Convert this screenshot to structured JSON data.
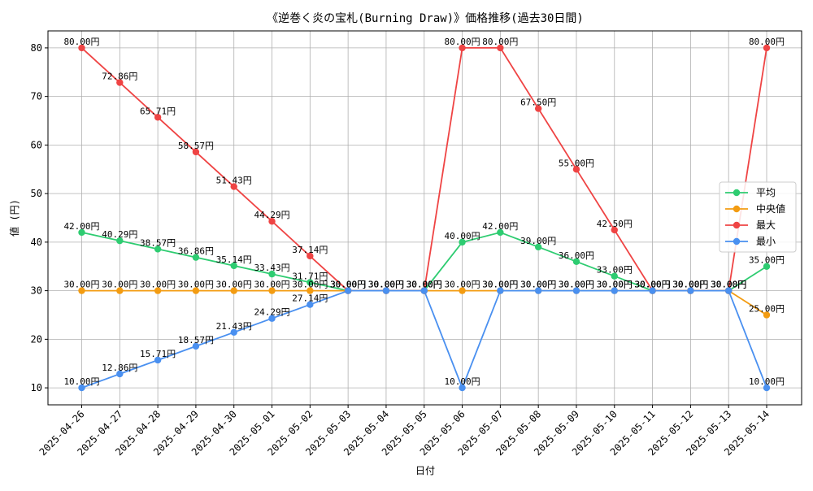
{
  "chart_data": {
    "type": "line",
    "title": "《逆巻く炎の宝札(Burning Draw)》価格推移(過去30日間)",
    "xlabel": "日付",
    "ylabel": "値 (円)",
    "ylim": [
      6.5,
      83.5
    ],
    "yticks": [
      10,
      20,
      30,
      40,
      50,
      60,
      70,
      80
    ],
    "grid": true,
    "legend_position": "center-right",
    "categories": [
      "2025-04-26",
      "2025-04-27",
      "2025-04-28",
      "2025-04-29",
      "2025-04-30",
      "2025-05-01",
      "2025-05-02",
      "2025-05-03",
      "2025-05-04",
      "2025-05-05",
      "2025-05-06",
      "2025-05-07",
      "2025-05-08",
      "2025-05-09",
      "2025-05-10",
      "2025-05-11",
      "2025-05-12",
      "2025-05-13",
      "2025-05-14"
    ],
    "series": [
      {
        "name": "平均",
        "color": "#2ecc71",
        "values": [
          42.0,
          40.29,
          38.57,
          36.86,
          35.14,
          33.43,
          31.71,
          30.0,
          30.0,
          30.0,
          40.0,
          42.0,
          39.0,
          36.0,
          33.0,
          30.0,
          30.0,
          30.0,
          35.0
        ]
      },
      {
        "name": "中央値",
        "color": "#f39c12",
        "values": [
          30.0,
          30.0,
          30.0,
          30.0,
          30.0,
          30.0,
          30.0,
          30.0,
          30.0,
          30.0,
          30.0,
          30.0,
          30.0,
          30.0,
          30.0,
          30.0,
          30.0,
          30.0,
          25.0
        ]
      },
      {
        "name": "最大",
        "color": "#ef4444",
        "values": [
          80.0,
          72.86,
          65.71,
          58.57,
          51.43,
          44.29,
          37.14,
          30.0,
          30.0,
          30.0,
          80.0,
          80.0,
          67.5,
          55.0,
          42.5,
          30.0,
          30.0,
          30.0,
          80.0
        ]
      },
      {
        "name": "最小",
        "color": "#4a90f0",
        "values": [
          10.0,
          12.86,
          15.71,
          18.57,
          21.43,
          24.29,
          27.14,
          30.0,
          30.0,
          30.0,
          10.0,
          30.0,
          30.0,
          30.0,
          30.0,
          30.0,
          30.0,
          30.0,
          10.0
        ]
      }
    ],
    "value_suffix": "円"
  }
}
